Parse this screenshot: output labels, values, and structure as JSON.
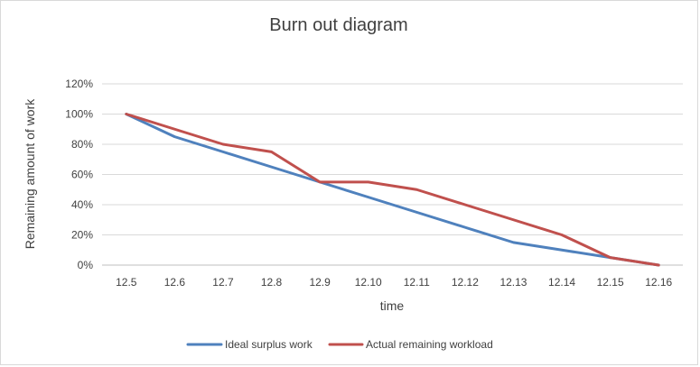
{
  "chart_data": {
    "type": "line",
    "title": "Burn out diagram",
    "xlabel": "time",
    "ylabel": "Remaining amount of work",
    "categories": [
      "12.5",
      "12.6",
      "12.7",
      "12.8",
      "12.9",
      "12.10",
      "12.11",
      "12.12",
      "12.13",
      "12.14",
      "12.15",
      "12.16"
    ],
    "series": [
      {
        "name": "Ideal surplus work",
        "color": "#4f81bd",
        "values": [
          100,
          85,
          75,
          65,
          55,
          45,
          35,
          25,
          15,
          10,
          5,
          0
        ]
      },
      {
        "name": "Actual remaining workload",
        "color": "#c0504d",
        "values": [
          100,
          90,
          80,
          75,
          55,
          55,
          50,
          40,
          30,
          20,
          5,
          0
        ]
      }
    ],
    "ylim": [
      0,
      120
    ],
    "yticks": [
      "0%",
      "20%",
      "40%",
      "60%",
      "80%",
      "100%",
      "120%"
    ],
    "grid": true,
    "legend_position": "bottom"
  }
}
